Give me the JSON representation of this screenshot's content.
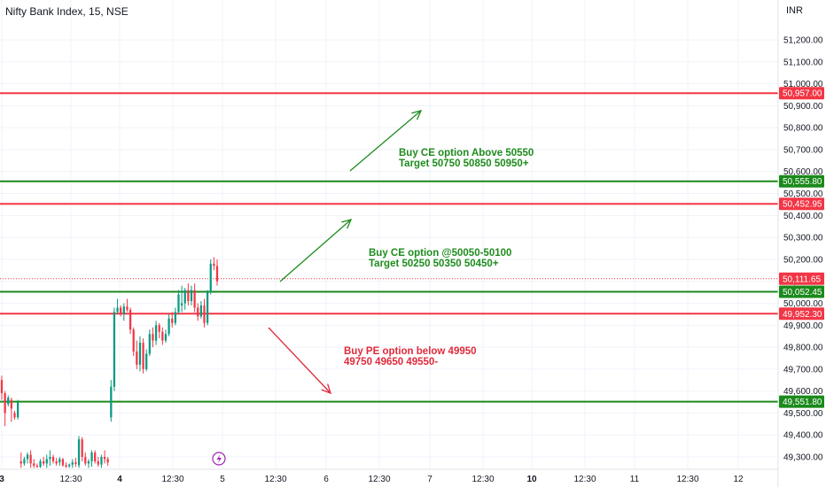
{
  "chart_data": {
    "type": "candlestick",
    "title": "Nifty Bank Index, 15, NSE",
    "currency": "INR",
    "y_ticks": [
      "51,200.00",
      "51,100.00",
      "51,000.00",
      "50,900.00",
      "50,800.00",
      "50,700.00",
      "50,600.00",
      "50,500.00",
      "50,400.00",
      "50,300.00",
      "50,200.00",
      "50,100.00",
      "50,000.00",
      "49,900.00",
      "49,800.00",
      "49,700.00",
      "49,600.00",
      "49,500.00",
      "49,400.00",
      "49,300.00"
    ],
    "ylim": [
      49240,
      51290
    ],
    "x_ticks": [
      {
        "label": "3",
        "bold": true
      },
      {
        "label": "12:30",
        "bold": false
      },
      {
        "label": "4",
        "bold": true
      },
      {
        "label": "12:30",
        "bold": false
      },
      {
        "label": "5",
        "bold": false
      },
      {
        "label": "12:30",
        "bold": false
      },
      {
        "label": "6",
        "bold": false
      },
      {
        "label": "12:30",
        "bold": false
      },
      {
        "label": "7",
        "bold": false
      },
      {
        "label": "12:30",
        "bold": false
      },
      {
        "label": "10",
        "bold": true
      },
      {
        "label": "12:30",
        "bold": false
      },
      {
        "label": "11",
        "bold": false
      },
      {
        "label": "12:30",
        "bold": false
      },
      {
        "label": "12",
        "bold": false
      }
    ],
    "levels": [
      {
        "value": 50957.0,
        "label": "50,957.00",
        "color": "#f23645"
      },
      {
        "value": 50555.8,
        "label": "50,555.80",
        "color": "#1b8a1b"
      },
      {
        "value": 50452.95,
        "label": "50,452.95",
        "color": "#f23645"
      },
      {
        "value": 50052.45,
        "label": "50,052.45",
        "color": "#1b8a1b"
      },
      {
        "value": 49952.3,
        "label": "49,952.30",
        "color": "#f23645"
      },
      {
        "value": 49551.8,
        "label": "49,551.80",
        "color": "#1b8a1b"
      }
    ],
    "last_price": {
      "value": 50111.65,
      "label": "50,111.65",
      "color": "#f23645"
    },
    "candles": [
      [
        49650,
        49670,
        49560,
        49590
      ],
      [
        49590,
        49600,
        49440,
        49500
      ],
      [
        49540,
        49580,
        49530,
        49570
      ],
      [
        49560,
        49570,
        49460,
        49520
      ],
      [
        49500,
        49510,
        49470,
        49480
      ],
      [
        49480,
        49560,
        49470,
        49550
      ],
      [
        49280,
        49320,
        49250,
        49270
      ],
      [
        49270,
        49300,
        49260,
        49290
      ],
      [
        49290,
        49320,
        49270,
        49310
      ],
      [
        49310,
        49330,
        49250,
        49270
      ],
      [
        49270,
        49290,
        49250,
        49260
      ],
      [
        49260,
        49270,
        49250,
        49255
      ],
      [
        49255,
        49290,
        49250,
        49280
      ],
      [
        49280,
        49300,
        49260,
        49270
      ],
      [
        49270,
        49310,
        49250,
        49290
      ],
      [
        49290,
        49330,
        49260,
        49300
      ],
      [
        49300,
        49310,
        49270,
        49280
      ],
      [
        49280,
        49295,
        49260,
        49270
      ],
      [
        49275,
        49300,
        49260,
        49290
      ],
      [
        49290,
        49295,
        49255,
        49262
      ],
      [
        49262,
        49275,
        49250,
        49255
      ],
      [
        49258,
        49270,
        49250,
        49265
      ],
      [
        49265,
        49290,
        49250,
        49275
      ],
      [
        49275,
        49295,
        49255,
        49268
      ],
      [
        49262,
        49395,
        49250,
        49380
      ],
      [
        49380,
        49390,
        49280,
        49300
      ],
      [
        49300,
        49320,
        49260,
        49270
      ],
      [
        49270,
        49290,
        49250,
        49280
      ],
      [
        49280,
        49330,
        49255,
        49320
      ],
      [
        49320,
        49330,
        49270,
        49280
      ],
      [
        49280,
        49300,
        49255,
        49265
      ],
      [
        49265,
        49310,
        49250,
        49300
      ],
      [
        49300,
        49330,
        49270,
        49290
      ],
      [
        49290,
        49300,
        49260,
        49275
      ],
      [
        49480,
        49650,
        49460,
        49620
      ],
      [
        49620,
        49980,
        49600,
        49960
      ],
      [
        49960,
        50020,
        49950,
        49980
      ],
      [
        49980,
        49990,
        49940,
        49950
      ],
      [
        49950,
        50000,
        49920,
        49985
      ],
      [
        49985,
        50020,
        49960,
        49970
      ],
      [
        49970,
        49980,
        49860,
        49880
      ],
      [
        49880,
        49890,
        49760,
        49780
      ],
      [
        49780,
        49830,
        49700,
        49720
      ],
      [
        49720,
        49850,
        49690,
        49820
      ],
      [
        49820,
        49840,
        49680,
        49700
      ],
      [
        49700,
        49790,
        49690,
        49770
      ],
      [
        49770,
        49880,
        49760,
        49860
      ],
      [
        49860,
        49890,
        49800,
        49830
      ],
      [
        49830,
        49920,
        49810,
        49900
      ],
      [
        49900,
        49910,
        49840,
        49870
      ],
      [
        49870,
        49890,
        49810,
        49830
      ],
      [
        49830,
        49880,
        49820,
        49860
      ],
      [
        49860,
        49950,
        49850,
        49930
      ],
      [
        49930,
        49960,
        49890,
        49910
      ],
      [
        49910,
        49980,
        49900,
        49960
      ],
      [
        49960,
        50060,
        49950,
        50040
      ],
      [
        49990,
        50080,
        49960,
        50000
      ],
      [
        50000,
        50070,
        49970,
        50060
      ],
      [
        50060,
        50090,
        49990,
        50010
      ],
      [
        50010,
        50080,
        49990,
        50060
      ],
      [
        50060,
        50090,
        49960,
        49980
      ],
      [
        49980,
        50000,
        49920,
        49940
      ],
      [
        49940,
        50010,
        49930,
        49990
      ],
      [
        49990,
        50020,
        49890,
        49910
      ],
      [
        49910,
        50060,
        49900,
        50050
      ],
      [
        50050,
        50200,
        50040,
        50180
      ],
      [
        50180,
        50210,
        50150,
        50170
      ],
      [
        50170,
        50200,
        50080,
        50100
      ]
    ],
    "annotations": [
      {
        "lines": [
          "Buy CE option Above 50550",
          "Target 50750 50850 50950+"
        ],
        "color": "green"
      },
      {
        "lines": [
          "Buy CE option @50050-50100",
          "Target 50250 50350 50450+"
        ],
        "color": "green"
      },
      {
        "lines": [
          "Buy PE option below 49950",
          "49750 49650 49550-"
        ],
        "color": "red"
      }
    ],
    "grid": true,
    "colors": {
      "up": "#089981",
      "down": "#f23645",
      "grid": "#f0f3fa",
      "text": "#131722",
      "arrow_green": "#1e8c1e",
      "arrow_red": "#e0293b",
      "event_icon": "#9c27b0"
    }
  }
}
